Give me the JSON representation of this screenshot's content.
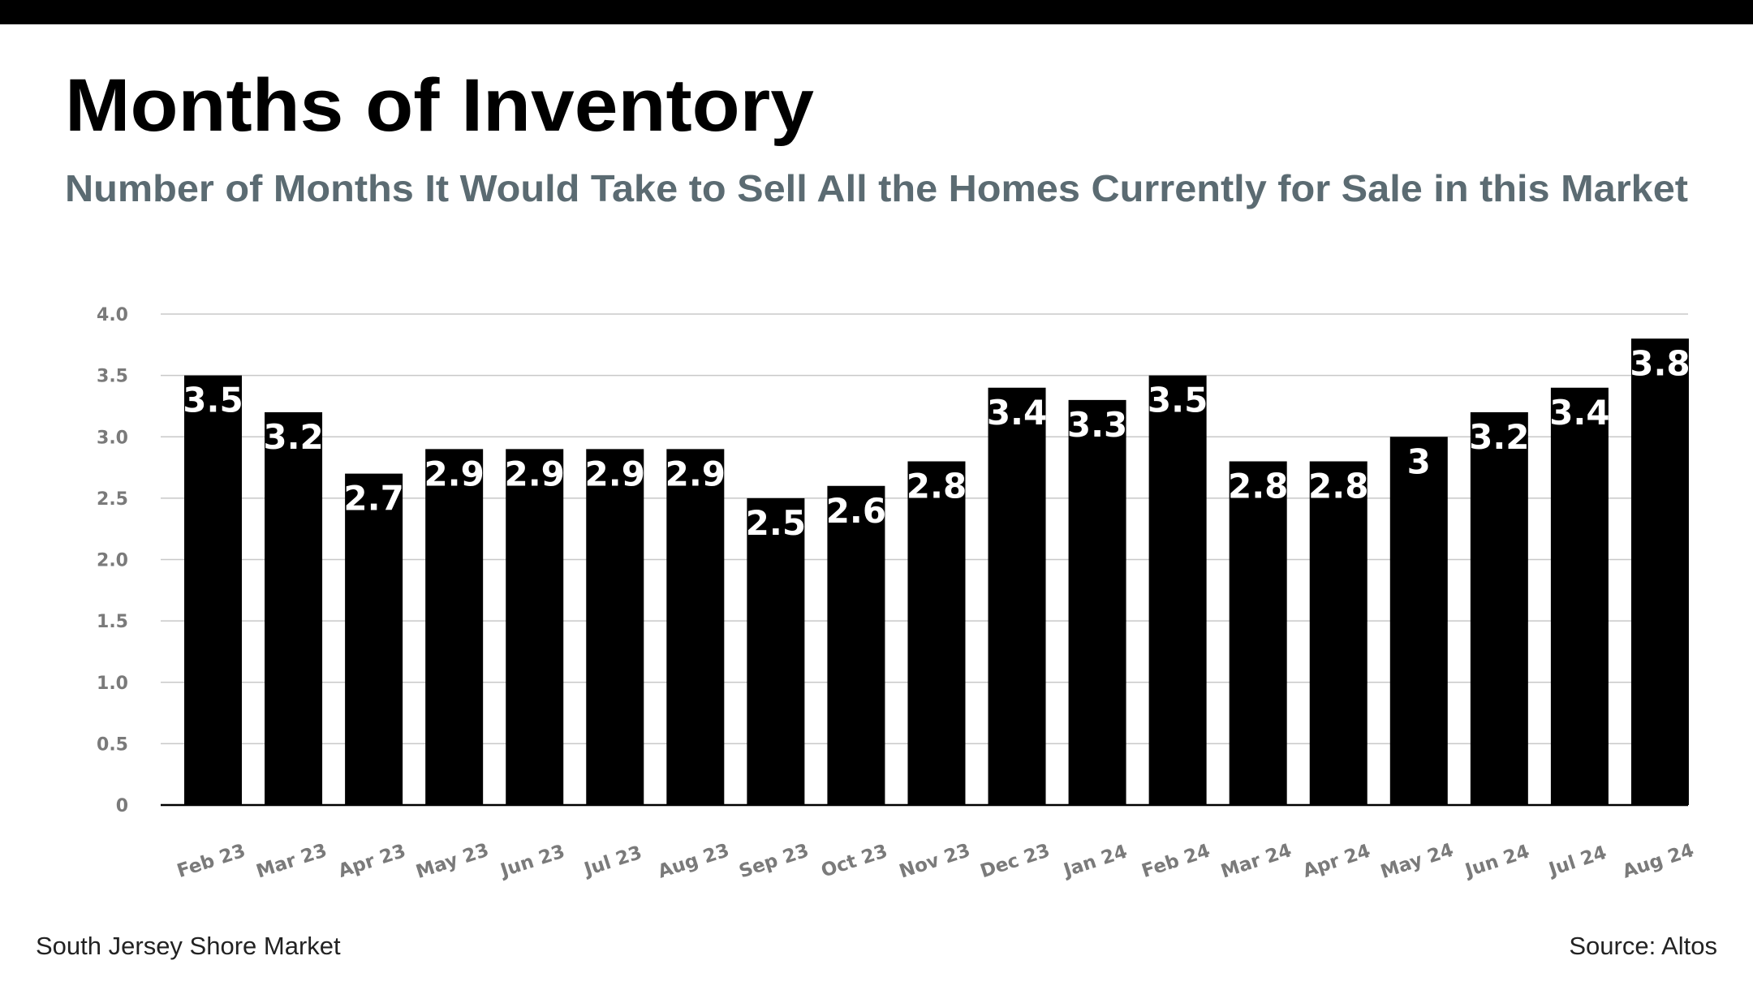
{
  "header": {
    "title": "Months of Inventory",
    "subtitle": "Number of Months It Would Take to Sell All the Homes Currently for Sale in this Market"
  },
  "footer": {
    "left": "South Jersey Shore Market",
    "right": "Source: Altos"
  },
  "colors": {
    "bar": "#000000",
    "label": "#ffffff",
    "subtitle": "#5b6b72",
    "grid": "#c8c8c8",
    "tick": "#7a7a7a"
  },
  "chart_data": {
    "type": "bar",
    "title": "Months of Inventory",
    "subtitle": "Number of Months It Would Take to Sell All the Homes Currently for Sale in this Market",
    "xlabel": "",
    "ylabel": "",
    "ylim": [
      0,
      4.0
    ],
    "yticks": [
      "0",
      "0.5",
      "1.0",
      "1.5",
      "2.0",
      "2.5",
      "3.0",
      "3.5",
      "4.0"
    ],
    "grid": true,
    "categories": [
      "Feb 23",
      "Mar 23",
      "Apr 23",
      "May 23",
      "Jun 23",
      "Jul 23",
      "Aug 23",
      "Sep 23",
      "Oct 23",
      "Nov 23",
      "Dec 23",
      "Jan 24",
      "Feb 24",
      "Mar 24",
      "Apr 24",
      "May 24",
      "Jun 24",
      "Jul 24",
      "Aug 24"
    ],
    "values": [
      3.5,
      3.2,
      2.7,
      2.9,
      2.9,
      2.9,
      2.9,
      2.5,
      2.6,
      2.8,
      3.4,
      3.3,
      3.5,
      2.8,
      2.8,
      3,
      3.2,
      3.4,
      3.8
    ],
    "data_labels": [
      "3.5",
      "3.2",
      "2.7",
      "2.9",
      "2.9",
      "2.9",
      "2.9",
      "2.5",
      "2.6",
      "2.8",
      "3.4",
      "3.3",
      "3.5",
      "2.8",
      "2.8",
      "3",
      "3.2",
      "3.4",
      "3.8"
    ]
  }
}
